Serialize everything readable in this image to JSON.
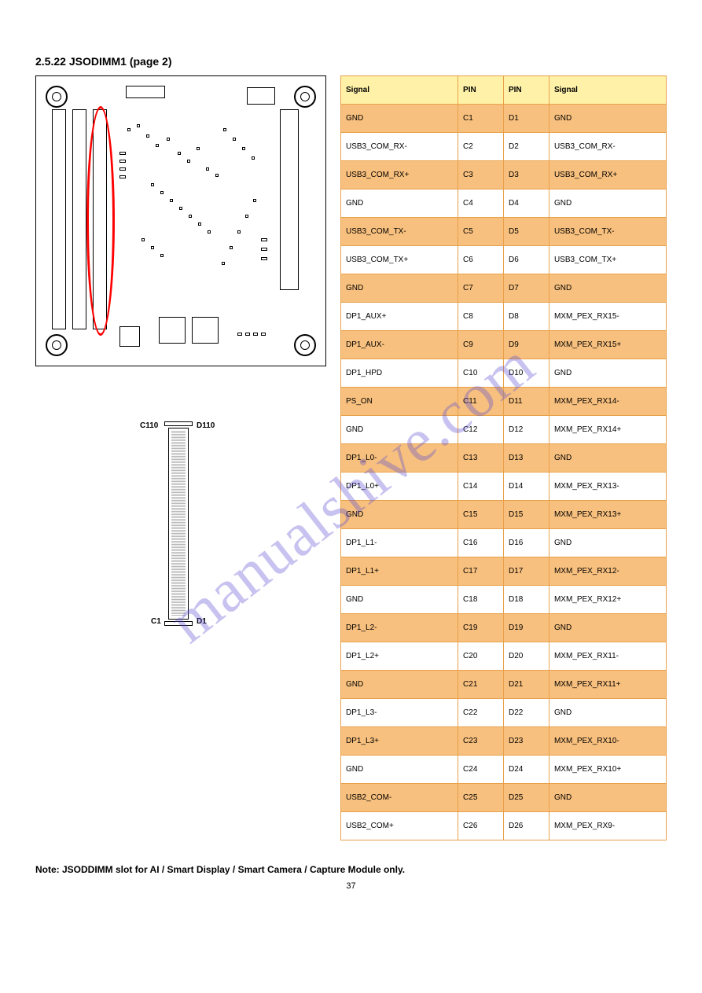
{
  "heading": "2.5.22 JSODIMM1 (page 2)",
  "watermark": "manualshive.com",
  "conn_labels": {
    "tl": "C110",
    "tr": "D110",
    "bl": "C1",
    "br": "D1"
  },
  "columns": [
    "Signal",
    "PIN",
    "PIN",
    "Signal"
  ],
  "rows": [
    [
      "GND",
      "C1",
      "D1",
      "GND"
    ],
    [
      "USB3_COM_RX-",
      "C2",
      "D2",
      "USB3_COM_RX-"
    ],
    [
      "USB3_COM_RX+",
      "C3",
      "D3",
      "USB3_COM_RX+"
    ],
    [
      "GND",
      "C4",
      "D4",
      "GND"
    ],
    [
      "USB3_COM_TX-",
      "C5",
      "D5",
      "USB3_COM_TX-"
    ],
    [
      "USB3_COM_TX+",
      "C6",
      "D6",
      "USB3_COM_TX+"
    ],
    [
      "GND",
      "C7",
      "D7",
      "GND"
    ],
    [
      "DP1_AUX+",
      "C8",
      "D8",
      "MXM_PEX_RX15-"
    ],
    [
      "DP1_AUX-",
      "C9",
      "D9",
      "MXM_PEX_RX15+"
    ],
    [
      "DP1_HPD",
      "C10",
      "D10",
      "GND"
    ],
    [
      "PS_ON",
      "C11",
      "D11",
      "MXM_PEX_RX14-"
    ],
    [
      "GND",
      "C12",
      "D12",
      "MXM_PEX_RX14+"
    ],
    [
      "DP1_L0-",
      "C13",
      "D13",
      "GND"
    ],
    [
      "DP1_L0+",
      "C14",
      "D14",
      "MXM_PEX_RX13-"
    ],
    [
      "GND",
      "C15",
      "D15",
      "MXM_PEX_RX13+"
    ],
    [
      "DP1_L1-",
      "C16",
      "D16",
      "GND"
    ],
    [
      "DP1_L1+",
      "C17",
      "D17",
      "MXM_PEX_RX12-"
    ],
    [
      "GND",
      "C18",
      "D18",
      "MXM_PEX_RX12+"
    ],
    [
      "DP1_L2-",
      "C19",
      "D19",
      "GND"
    ],
    [
      "DP1_L2+",
      "C20",
      "D20",
      "MXM_PEX_RX11-"
    ],
    [
      "GND",
      "C21",
      "D21",
      "MXM_PEX_RX11+"
    ],
    [
      "DP1_L3-",
      "C22",
      "D22",
      "GND"
    ],
    [
      "DP1_L3+",
      "C23",
      "D23",
      "MXM_PEX_RX10-"
    ],
    [
      "GND",
      "C24",
      "D24",
      "MXM_PEX_RX10+"
    ],
    [
      "USB2_COM-",
      "C25",
      "D25",
      "GND"
    ],
    [
      "USB2_COM+",
      "C26",
      "D26",
      "MXM_PEX_RX9-"
    ]
  ],
  "note": "Note: JSODDIMM slot for AI / Smart Display / Smart Camera / Capture Module only.",
  "page_number": "37",
  "colors": {
    "header_bg": "#fff2a8",
    "odd_bg": "#f8c07e",
    "even_bg": "#ffffff",
    "border": "#e8a14a",
    "red": "#ff0000",
    "wm": "rgba(95,80,210,0.35)"
  }
}
